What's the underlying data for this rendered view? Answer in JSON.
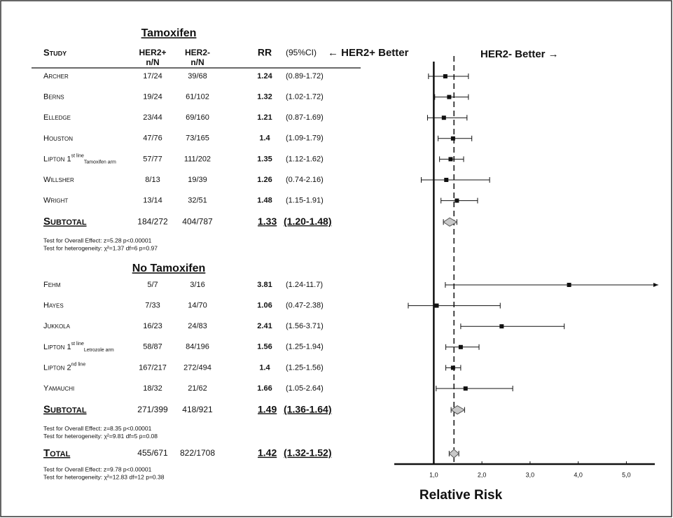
{
  "chart_data": {
    "type": "forest",
    "headers": {
      "study": "Study",
      "her2pos": "HER2+",
      "her2neg": "HER2-",
      "n_n": "n/N",
      "rr": "RR",
      "ci": "(95%CI)"
    },
    "left_label": "← HER2+ Better",
    "right_label": "HER2- Better →",
    "xlabel": "Relative Risk",
    "xlim": [
      0.18,
      5.59
    ],
    "xticks": [
      {
        "value": 1,
        "label": "1,0"
      },
      {
        "value": 2,
        "label": "2,0"
      },
      {
        "value": 3,
        "label": "3,0"
      },
      {
        "value": 4,
        "label": "4,0"
      },
      {
        "value": 5,
        "label": "5,0"
      }
    ],
    "groups": [
      {
        "title": "Tamoxifen",
        "studies": [
          {
            "name": "Archer",
            "her2pos": "17/24",
            "her2neg": "39/68",
            "rr": 1.24,
            "ci_label": "(0.89-1.72)",
            "ci": [
              0.89,
              1.72
            ]
          },
          {
            "name": "Berns",
            "her2pos": "19/24",
            "her2neg": "61/102",
            "rr": 1.32,
            "ci_label": "(1.02-1.72)",
            "ci": [
              1.02,
              1.72
            ]
          },
          {
            "name": "Elledge",
            "her2pos": "23/44",
            "her2neg": "69/160",
            "rr": 1.21,
            "ci_label": "(0.87-1.69)",
            "ci": [
              0.87,
              1.69
            ]
          },
          {
            "name": "Houston",
            "her2pos": "47/76",
            "her2neg": "73/165",
            "rr": 1.4,
            "ci_label": "(1.09-1.79)",
            "ci": [
              1.09,
              1.79
            ]
          },
          {
            "name": "Lipton 1",
            "sup": "st line",
            "sub": "Tamoxifen arm",
            "her2pos": "57/77",
            "her2neg": "111/202",
            "rr": 1.35,
            "ci_label": "(1.12-1.62)",
            "ci": [
              1.12,
              1.62
            ]
          },
          {
            "name": "Willsher",
            "her2pos": "8/13",
            "her2neg": "19/39",
            "rr": 1.26,
            "ci_label": "(0.74-2.16)",
            "ci": [
              0.74,
              2.16
            ]
          },
          {
            "name": "Wright",
            "her2pos": "13/14",
            "her2neg": "32/51",
            "rr": 1.48,
            "ci_label": "(1.15-1.91)",
            "ci": [
              1.15,
              1.91
            ]
          }
        ],
        "subtotal": {
          "name": "Subtotal",
          "her2pos": "184/272",
          "her2neg": "404/787",
          "rr": 1.33,
          "ci_label": "(1.20-1.48)",
          "ci": [
            1.2,
            1.48
          ]
        },
        "tests": [
          "Test for Overall Effect:  z=5.28  p<0.00001",
          "Test for heterogeneity:  χ²=1.37  df=6  p=0.97"
        ]
      },
      {
        "title": "No Tamoxifen",
        "studies": [
          {
            "name": "Fehm",
            "her2pos": "5/7",
            "her2neg": "3/16",
            "rr": 3.81,
            "ci_label": "(1.24-11.7)",
            "ci": [
              1.24,
              11.7
            ]
          },
          {
            "name": "Hayes",
            "her2pos": "7/33",
            "her2neg": "14/70",
            "rr": 1.06,
            "ci_label": "(0.47-2.38)",
            "ci": [
              0.47,
              2.38
            ]
          },
          {
            "name": "Jukkola",
            "her2pos": "16/23",
            "her2neg": "24/83",
            "rr": 2.41,
            "ci_label": "(1.56-3.71)",
            "ci": [
              1.56,
              3.71
            ]
          },
          {
            "name": "Lipton 1",
            "sup": "st line",
            "sub": "Letrozole arm",
            "her2pos": "58/87",
            "her2neg": "84/196",
            "rr": 1.56,
            "ci_label": "(1.25-1.94)",
            "ci": [
              1.25,
              1.94
            ]
          },
          {
            "name": "Lipton 2",
            "sup": "nd line",
            "her2pos": "167/217",
            "her2neg": "272/494",
            "rr": 1.4,
            "ci_label": "(1.25-1.56)",
            "ci": [
              1.25,
              1.56
            ]
          },
          {
            "name": "Yamauchi",
            "her2pos": "18/32",
            "her2neg": "21/62",
            "rr": 1.66,
            "ci_label": "(1.05-2.64)",
            "ci": [
              1.05,
              2.64
            ]
          }
        ],
        "subtotal": {
          "name": "Subtotal",
          "her2pos": "271/399",
          "her2neg": "418/921",
          "rr": 1.49,
          "ci_label": "(1.36-1.64)",
          "ci": [
            1.36,
            1.64
          ]
        },
        "tests": [
          "Test for Overall Effect:  z=8.35  p<0.00001",
          "Test for heterogeneity:  χ²=9.81  df=5  p=0.08"
        ]
      }
    ],
    "total": {
      "name": "Total",
      "her2pos": "455/671",
      "her2neg": "822/1708",
      "rr": 1.42,
      "ci_label": "(1.32-1.52)",
      "ci": [
        1.32,
        1.52
      ],
      "tests": [
        "Test for Overall Effect:  z=9.78  p<0.00001",
        "Test for heterogeneity:  χ²=12.83  df=12  p=0.38"
      ]
    }
  }
}
